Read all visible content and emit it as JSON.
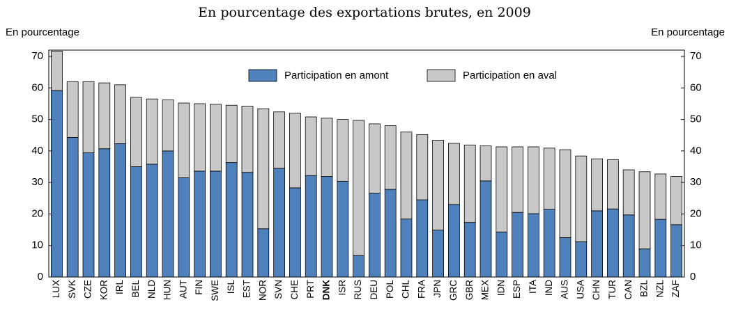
{
  "chart_data": {
    "type": "stacked_bar",
    "title": "En pourcentage des exportations brutes, en 2009",
    "y_label": "En pourcentage",
    "y2_label": "En pourcentage",
    "categories": [
      "LUX",
      "SVK",
      "CZE",
      "KOR",
      "IRL",
      "BEL",
      "NLD",
      "HUN",
      "AUT",
      "FIN",
      "SWE",
      "ISL",
      "EST",
      "NOR",
      "SVN",
      "CHE",
      "PRT",
      "DNK",
      "ISR",
      "RUS",
      "DEU",
      "POL",
      "CHL",
      "FRA",
      "JPN",
      "GRC",
      "GBR",
      "MEX",
      "IDN",
      "ESP",
      "ITA",
      "IND",
      "AUS",
      "USA",
      "CHN",
      "TUR",
      "CAN",
      "BZL",
      "NZL",
      "ZAF"
    ],
    "series": [
      {
        "name": "Participation en amont",
        "color": "#4f81bd",
        "values": [
          59.2,
          44.3,
          39.4,
          40.7,
          42.3,
          35,
          35.8,
          40,
          31.5,
          33.6,
          33.6,
          36.3,
          33.2,
          15.3,
          34.5,
          28.3,
          32.2,
          31.9,
          30.4,
          6.8,
          26.6,
          27.8,
          18.4,
          24.5,
          14.9,
          23,
          17.3,
          30.5,
          14.3,
          20.5,
          20.1,
          21.5,
          12.5,
          11.2,
          21,
          21.6,
          19.7,
          8.9,
          18.3,
          16.6
        ]
      },
      {
        "name": "Participation en aval",
        "color": "#c8c8c8",
        "values": [
          12.5,
          17.7,
          22.6,
          20.9,
          18.7,
          22,
          20.7,
          16.2,
          23.7,
          21.4,
          21.2,
          18.2,
          21,
          38.1,
          17.9,
          23.7,
          18.6,
          18.5,
          19.6,
          42.9,
          22,
          20.2,
          27.6,
          20.7,
          28.5,
          19.4,
          24.6,
          11.1,
          27,
          20.8,
          21.2,
          19.4,
          27.9,
          27.2,
          16.5,
          15.6,
          14.3,
          24.5,
          14.4,
          15.3
        ]
      }
    ],
    "ylim": [
      0,
      72
    ],
    "yticks": [
      0,
      10,
      20,
      30,
      40,
      50,
      60,
      70
    ],
    "y2lim": [
      0,
      72
    ],
    "y2ticks": [
      0,
      10,
      20,
      30,
      40,
      50,
      60,
      70
    ]
  }
}
